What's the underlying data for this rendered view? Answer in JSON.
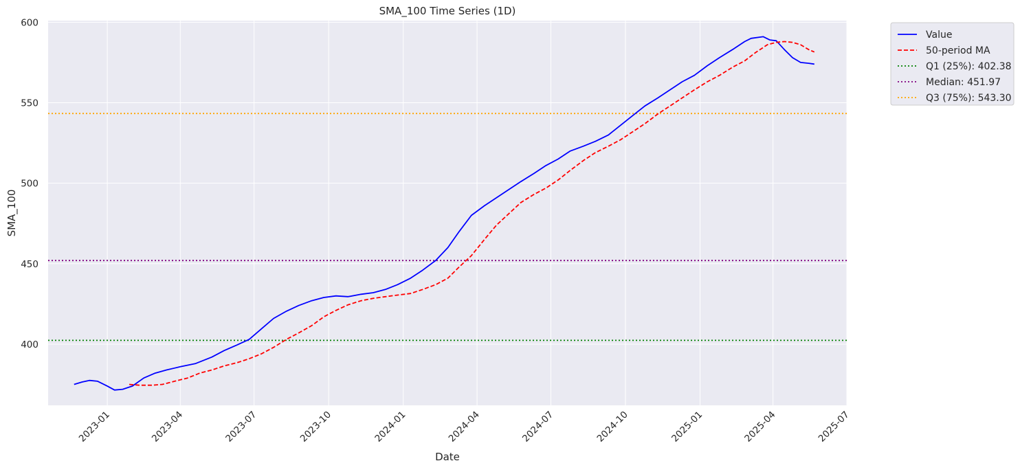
{
  "chart_data": {
    "type": "line",
    "title": "SMA_100 Time Series (1D)",
    "xlabel": "Date",
    "ylabel": "SMA_100",
    "xlim": [
      "2022-10-20",
      "2025-07-01"
    ],
    "ylim": [
      362,
      601
    ],
    "grid": true,
    "legend_position": "outside top-right",
    "x_tick_labels": [
      "2023-01",
      "2023-04",
      "2023-07",
      "2023-10",
      "2024-01",
      "2024-04",
      "2024-07",
      "2024-10",
      "2025-01",
      "2025-04",
      "2025-07"
    ],
    "x_tick_dates": [
      "2023-01-01",
      "2023-04-01",
      "2023-07-01",
      "2023-10-01",
      "2024-01-01",
      "2024-04-01",
      "2024-07-01",
      "2024-10-01",
      "2025-01-01",
      "2025-04-01",
      "2025-07-01"
    ],
    "y_tick_labels": [
      "400",
      "450",
      "500",
      "550",
      "600"
    ],
    "y_tick_values": [
      400,
      450,
      500,
      550,
      600
    ],
    "series": [
      {
        "name": "Value",
        "color": "#0000ff",
        "style": "solid",
        "x": [
          "2022-11-21",
          "2022-12-01",
          "2022-12-10",
          "2022-12-20",
          "2023-01-01",
          "2023-01-10",
          "2023-01-20",
          "2023-02-01",
          "2023-02-15",
          "2023-03-01",
          "2023-03-15",
          "2023-04-01",
          "2023-04-20",
          "2023-05-10",
          "2023-05-25",
          "2023-06-10",
          "2023-06-25",
          "2023-07-10",
          "2023-07-25",
          "2023-08-10",
          "2023-08-25",
          "2023-09-10",
          "2023-09-25",
          "2023-10-10",
          "2023-10-25",
          "2023-11-10",
          "2023-11-25",
          "2023-12-10",
          "2023-12-25",
          "2024-01-10",
          "2024-01-25",
          "2024-02-10",
          "2024-02-25",
          "2024-03-10",
          "2024-03-25",
          "2024-04-10",
          "2024-04-25",
          "2024-05-10",
          "2024-05-25",
          "2024-06-10",
          "2024-06-25",
          "2024-07-10",
          "2024-07-25",
          "2024-08-10",
          "2024-08-25",
          "2024-09-10",
          "2024-09-25",
          "2024-10-10",
          "2024-10-25",
          "2024-11-10",
          "2024-11-25",
          "2024-12-10",
          "2024-12-25",
          "2025-01-10",
          "2025-01-25",
          "2025-02-10",
          "2025-02-25",
          "2025-03-05",
          "2025-03-20",
          "2025-03-28",
          "2025-04-05",
          "2025-04-15",
          "2025-04-25",
          "2025-05-05",
          "2025-05-15",
          "2025-05-22"
        ],
        "values": [
          375,
          376.5,
          377.5,
          377,
          374,
          371.5,
          372,
          374,
          379,
          382,
          384,
          386,
          388,
          392,
          396,
          399.5,
          403,
          409.5,
          416,
          420.5,
          424,
          427,
          429,
          430,
          429.5,
          431,
          432,
          434,
          437,
          441,
          446,
          452,
          460,
          470,
          480,
          486,
          491,
          496,
          501,
          506,
          511,
          515,
          520,
          523,
          526,
          530,
          536,
          542,
          548,
          553,
          558,
          563,
          567,
          573,
          578,
          583,
          588,
          590,
          591,
          589,
          588.5,
          583,
          578,
          575,
          574.5,
          574
        ]
      },
      {
        "name": "50-period MA",
        "color": "#ff0000",
        "style": "dashed",
        "x": [
          "2023-01-28",
          "2023-02-10",
          "2023-02-25",
          "2023-03-10",
          "2023-03-25",
          "2023-04-10",
          "2023-04-25",
          "2023-05-10",
          "2023-05-25",
          "2023-06-10",
          "2023-06-25",
          "2023-07-10",
          "2023-07-25",
          "2023-08-10",
          "2023-08-25",
          "2023-09-10",
          "2023-09-25",
          "2023-10-10",
          "2023-10-25",
          "2023-11-10",
          "2023-11-25",
          "2023-12-10",
          "2023-12-25",
          "2024-01-10",
          "2024-01-25",
          "2024-02-10",
          "2024-02-25",
          "2024-03-10",
          "2024-03-25",
          "2024-04-10",
          "2024-04-25",
          "2024-05-10",
          "2024-05-25",
          "2024-06-10",
          "2024-06-25",
          "2024-07-10",
          "2024-07-25",
          "2024-08-10",
          "2024-08-25",
          "2024-09-10",
          "2024-09-25",
          "2024-10-10",
          "2024-10-25",
          "2024-11-10",
          "2024-11-25",
          "2024-12-10",
          "2024-12-25",
          "2025-01-10",
          "2025-01-25",
          "2025-02-10",
          "2025-02-25",
          "2025-03-10",
          "2025-03-25",
          "2025-04-05",
          "2025-04-15",
          "2025-04-25",
          "2025-05-05",
          "2025-05-15",
          "2025-05-22"
        ],
        "values": [
          375,
          374.5,
          374.5,
          375,
          377,
          379,
          382,
          384,
          386.5,
          388.5,
          391,
          394,
          398,
          403,
          407,
          411.5,
          417,
          421,
          424.5,
          427,
          428.5,
          429.5,
          430.5,
          431.5,
          434,
          437,
          441,
          448,
          455,
          465,
          474,
          481,
          488,
          493,
          497,
          502,
          508,
          514,
          519,
          523,
          527,
          532,
          537,
          543,
          548,
          553,
          558,
          563,
          567,
          572,
          576,
          581,
          586,
          587.5,
          588,
          587.5,
          586,
          583,
          581.5
        ]
      }
    ],
    "reference_lines": [
      {
        "name": "Q1 (25%): 402.38",
        "value": 402.38,
        "color": "#008000",
        "style": "dotted"
      },
      {
        "name": "Median: 451.97",
        "value": 451.97,
        "color": "#800080",
        "style": "dotted"
      },
      {
        "name": "Q3 (75%): 543.30",
        "value": 543.3,
        "color": "#ffa500",
        "style": "dotted"
      }
    ],
    "colors": {
      "plot_background": "#eaeaf2",
      "grid": "#ffffff"
    }
  }
}
